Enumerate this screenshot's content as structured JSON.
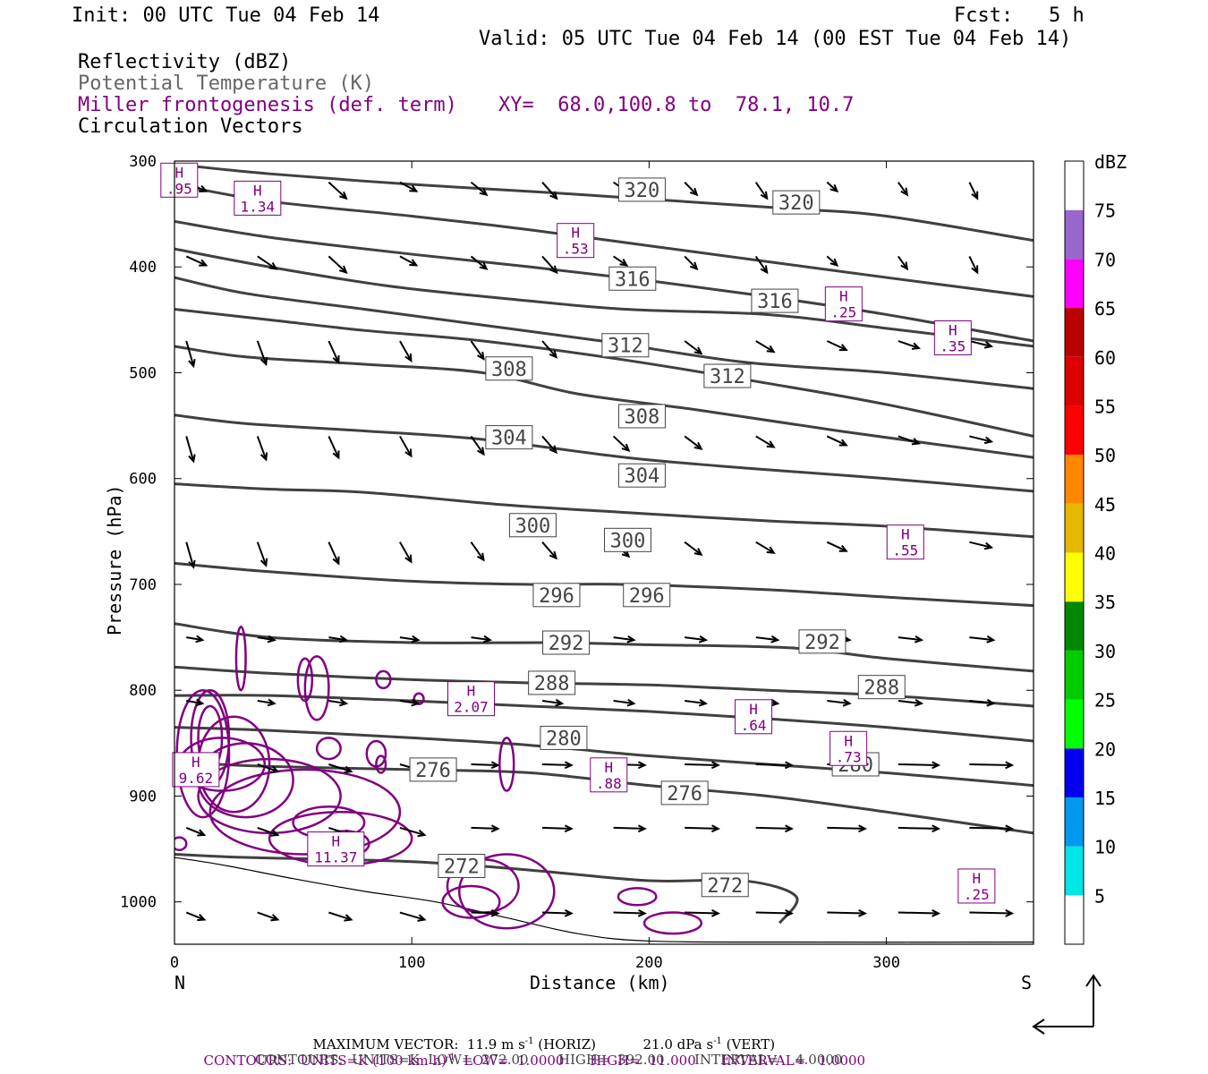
{
  "header": {
    "init": "Init: 00 UTC Tue 04 Feb 14",
    "fcst": "Fcst:   5 h",
    "valid": "Valid: 05 UTC Tue 04 Feb 14 (00 EST Tue 04 Feb 14)"
  },
  "legend_lines": {
    "reflectivity": "Reflectivity (dBZ)",
    "theta": "Potential Temperature (K)",
    "miller": "Miller frontogenesis (def. term)",
    "xy": "XY=  68.0,100.8 to  78.1, 10.7",
    "circulation": "Circulation Vectors"
  },
  "colors": {
    "theta": "#404040",
    "miller": "#800080",
    "text_gray": "#666666"
  },
  "chart_data": {
    "type": "line",
    "xlabel": "Distance (km)",
    "ylabel": "Pressure (hPa)",
    "xlim": [
      0,
      362
    ],
    "ylim": [
      1040,
      300
    ],
    "x_ticks": [
      0,
      100,
      200,
      300
    ],
    "y_ticks": [
      300,
      400,
      500,
      600,
      700,
      800,
      900,
      1000
    ],
    "x_end_labels": {
      "left": "N",
      "right": "S"
    },
    "theta_series": [
      {
        "name": "320",
        "x": [
          0,
          40,
          100,
          160,
          200,
          260,
          300,
          362
        ],
        "y": [
          303,
          312,
          322,
          330,
          336,
          345,
          352,
          375
        ]
      },
      {
        "name": "",
        "x": [
          0,
          40,
          100,
          150,
          200,
          250,
          300,
          362
        ],
        "y": [
          322,
          338,
          352,
          365,
          380,
          395,
          410,
          428
        ]
      },
      {
        "name": "",
        "x": [
          0,
          40,
          100,
          150,
          200,
          250,
          300,
          362
        ],
        "y": [
          357,
          372,
          388,
          400,
          413,
          428,
          445,
          470
        ]
      },
      {
        "name": "316",
        "x": [
          0,
          40,
          90,
          140,
          190,
          250,
          300,
          362
        ],
        "y": [
          383,
          400,
          418,
          430,
          440,
          445,
          458,
          475
        ]
      },
      {
        "name": "",
        "x": [
          0,
          30,
          80,
          130,
          180,
          240,
          300,
          362
        ],
        "y": [
          410,
          425,
          440,
          455,
          470,
          490,
          500,
          515
        ]
      },
      {
        "name": "312",
        "x": [
          0,
          40,
          80,
          130,
          190,
          250,
          300,
          362
        ],
        "y": [
          440,
          450,
          460,
          470,
          488,
          510,
          530,
          560
        ]
      },
      {
        "name": "308",
        "x": [
          0,
          30,
          80,
          130,
          170,
          220,
          280,
          362
        ],
        "y": [
          475,
          485,
          492,
          500,
          520,
          535,
          555,
          580
        ]
      },
      {
        "name": "304",
        "x": [
          0,
          30,
          80,
          130,
          190,
          240,
          300,
          362
        ],
        "y": [
          540,
          548,
          555,
          563,
          580,
          590,
          600,
          612
        ]
      },
      {
        "name": "300",
        "x": [
          0,
          40,
          80,
          140,
          190,
          250,
          300,
          362
        ],
        "y": [
          605,
          610,
          613,
          625,
          632,
          640,
          645,
          655
        ]
      },
      {
        "name": "296",
        "x": [
          0,
          40,
          100,
          150,
          190,
          250,
          300,
          362
        ],
        "y": [
          680,
          688,
          697,
          700,
          700,
          705,
          712,
          720
        ]
      },
      {
        "name": "292",
        "x": [
          0,
          40,
          100,
          160,
          200,
          260,
          300,
          362
        ],
        "y": [
          737,
          750,
          755,
          755,
          757,
          760,
          770,
          782
        ]
      },
      {
        "name": "288",
        "x": [
          0,
          40,
          100,
          150,
          200,
          250,
          300,
          362
        ],
        "y": [
          778,
          784,
          790,
          793,
          795,
          800,
          805,
          815
        ]
      },
      {
        "name": "",
        "x": [
          0,
          40,
          100,
          150,
          200,
          250,
          300,
          362
        ],
        "y": [
          805,
          805,
          810,
          815,
          820,
          827,
          835,
          848
        ]
      },
      {
        "name": "280",
        "x": [
          0,
          40,
          100,
          150,
          200,
          250,
          300,
          362
        ],
        "y": [
          835,
          838,
          845,
          852,
          862,
          870,
          878,
          890
        ]
      },
      {
        "name": "276",
        "x": [
          0,
          40,
          100,
          150,
          200,
          250,
          300,
          362
        ],
        "y": [
          868,
          872,
          875,
          878,
          890,
          900,
          915,
          935
        ]
      },
      {
        "name": "272",
        "x": [
          0,
          30,
          100,
          150,
          200,
          240,
          262,
          255
        ],
        "y": [
          955,
          958,
          962,
          970,
          980,
          980,
          995,
          1020
        ]
      }
    ],
    "theta_labels": [
      {
        "text": "320",
        "x": 197,
        "y": 327
      },
      {
        "text": "320",
        "x": 262,
        "y": 339
      },
      {
        "text": "316",
        "x": 193,
        "y": 411
      },
      {
        "text": "316",
        "x": 253,
        "y": 432
      },
      {
        "text": "312",
        "x": 190,
        "y": 474
      },
      {
        "text": "312",
        "x": 233,
        "y": 503
      },
      {
        "text": "308",
        "x": 141,
        "y": 496
      },
      {
        "text": "308",
        "x": 197,
        "y": 541
      },
      {
        "text": "304",
        "x": 141,
        "y": 561
      },
      {
        "text": "304",
        "x": 197,
        "y": 597
      },
      {
        "text": "300",
        "x": 151,
        "y": 644
      },
      {
        "text": "300",
        "x": 191,
        "y": 658
      },
      {
        "text": "296",
        "x": 161,
        "y": 710
      },
      {
        "text": "296",
        "x": 199,
        "y": 710
      },
      {
        "text": "292",
        "x": 165,
        "y": 755
      },
      {
        "text": "292",
        "x": 273,
        "y": 754
      },
      {
        "text": "288",
        "x": 159,
        "y": 793
      },
      {
        "text": "288",
        "x": 298,
        "y": 797
      },
      {
        "text": "280",
        "x": 164,
        "y": 845
      },
      {
        "text": "280",
        "x": 287,
        "y": 870
      },
      {
        "text": "276",
        "x": 109,
        "y": 875
      },
      {
        "text": "276",
        "x": 215,
        "y": 897
      },
      {
        "text": "272",
        "x": 121,
        "y": 966
      },
      {
        "text": "272",
        "x": 232,
        "y": 984
      }
    ],
    "frontogenesis_maxima": [
      {
        "value": ".95",
        "x": 2,
        "y": 318
      },
      {
        "value": "1.34",
        "x": 35,
        "y": 335
      },
      {
        "value": ".53",
        "x": 169,
        "y": 375
      },
      {
        "value": ".25",
        "x": 282,
        "y": 435
      },
      {
        "value": ".35",
        "x": 328,
        "y": 467
      },
      {
        "value": "9.62",
        "x": 9,
        "y": 875
      },
      {
        "value": "11.37",
        "x": 68,
        "y": 950
      },
      {
        "value": "2.07",
        "x": 125,
        "y": 808
      },
      {
        "value": ".64",
        "x": 244,
        "y": 825
      },
      {
        "value": ".73",
        "x": 284,
        "y": 855
      },
      {
        "value": ".88",
        "x": 183,
        "y": 880
      },
      {
        "value": ".55",
        "x": 308,
        "y": 660
      },
      {
        "value": ".25",
        "x": 338,
        "y": 985
      }
    ],
    "colorbar": {
      "title": "dBZ",
      "levels": [
        "5",
        "10",
        "15",
        "20",
        "25",
        "30",
        "35",
        "40",
        "45",
        "50",
        "55",
        "60",
        "65",
        "70",
        "75"
      ],
      "colors": [
        "#ffffff",
        "#00e5e5",
        "#0099ee",
        "#0000ee",
        "#00ff00",
        "#00cc00",
        "#008800",
        "#ffff00",
        "#e6b800",
        "#ff8800",
        "#ff0000",
        "#dd0000",
        "#bb0000",
        "#ff00ff",
        "#9966cc",
        "#ffffff"
      ]
    }
  },
  "footer": {
    "max_vector": "MAXIMUM VECTOR:  11.9 m s",
    "max_vector_exp": "-1",
    "max_vector_horiz": " (HORIZ)",
    "max_vector_vert": "21.0 dPa s",
    "max_vector_vert_exp": "-1",
    "max_vector_vert_suffix": " (VERT)",
    "contours1_a": "CONTOURS:  UNITS=K (100 km h)",
    "contours1_exp": "-1",
    "contours1_b": "  LOW=  1.0000      HIGH=  11.000      INTERVAL=   1.0000",
    "contours2": "CONTOURS:  UNITS=K  LOW=  272.00       HIGH=  392.00       INTERVAL=    4.0000"
  }
}
